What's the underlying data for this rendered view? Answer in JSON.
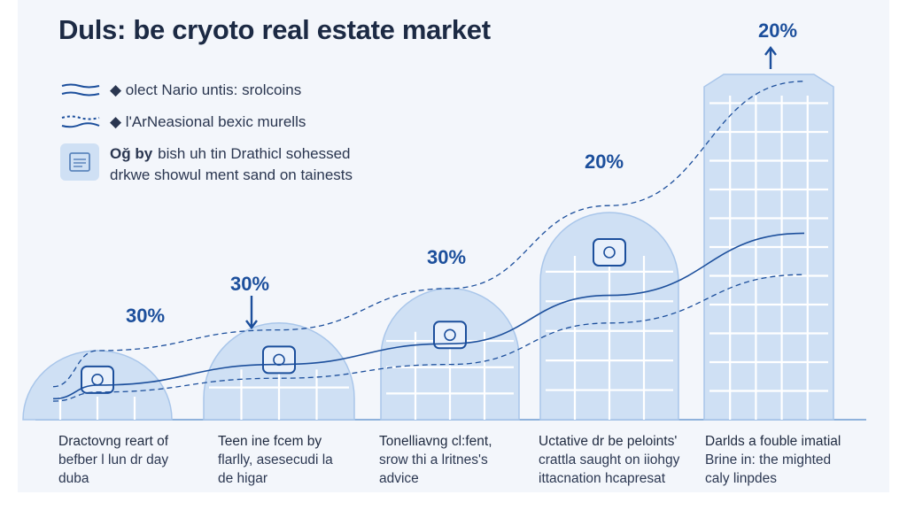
{
  "title": "Duls: be cryoto real estate market",
  "legend": [
    {
      "icon": "wave-lines-icon",
      "text": "◆ olect Nario untis: srolcoins"
    },
    {
      "icon": "dotted-wave-icon",
      "text": "◆ l'ArNeasional bexic murells"
    }
  ],
  "note": {
    "icon": "document-icon",
    "bold": "Oğ by",
    "line1": "bish uh tin Drathicl sohessed",
    "line2": "drkwe showul ment sand on tainests"
  },
  "colors": {
    "accent": "#1c4f9c",
    "building_fill": "#cfe0f4",
    "building_stroke": "#ffffff",
    "axis": "#8fb2dc"
  },
  "chart_data": {
    "type": "bar",
    "title": "Duls: be cryoto real estate market",
    "categories": [
      "Dractovng reart of",
      "Teen ine fcem by",
      "Tonelliavng cl:fent,",
      "Uctative dr be peloints'",
      "Darlds a fouble imatial"
    ],
    "data_labels": [
      "30%",
      "30%",
      "30%",
      "20%",
      "20%"
    ],
    "values": [
      30,
      30,
      30,
      20,
      20
    ],
    "relative_heights": [
      1,
      1.4,
      1.9,
      3.0,
      5.0
    ],
    "trend_lines": [
      {
        "style": "dashed",
        "values": [
          1.0,
          1.3,
          1.9,
          3.1,
          4.9
        ]
      },
      {
        "style": "solid",
        "values": [
          0.5,
          0.8,
          1.1,
          1.8,
          2.7
        ]
      },
      {
        "style": "dashed",
        "values": [
          0.4,
          0.6,
          0.8,
          1.4,
          2.1
        ]
      }
    ],
    "legend_position": "top-left",
    "grid": false
  },
  "captions": [
    {
      "l1": "Dractovng reart of",
      "l2": "befber l lun dr day",
      "l3": "duba"
    },
    {
      "l1": "Teen ine fcem by",
      "l2": "flarlly, asesecudi la",
      "l3": "de higar"
    },
    {
      "l1": "Tonelliavng cl:fent,",
      "l2": "srow thi a lritnes's",
      "l3": "advice"
    },
    {
      "l1": "Uctative dr be peloints'",
      "l2": "crattla saught on iiohgy",
      "l3": "ittacnation hcapresat"
    },
    {
      "l1": "Darlds a fouble imatial",
      "l2": "Brine in: the mighted",
      "l3": "caly linpdes"
    }
  ]
}
